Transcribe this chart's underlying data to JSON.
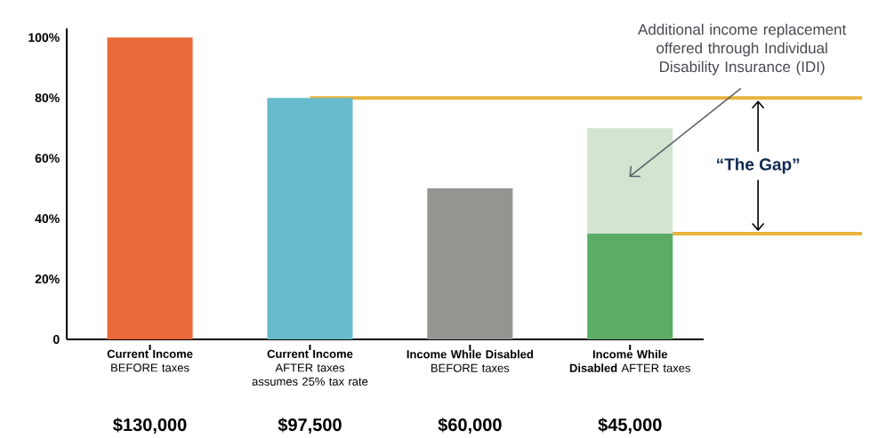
{
  "chart_data": {
    "type": "bar",
    "stacked": true,
    "categories": [
      "**Current Income** BEFORE taxes",
      "**Current Income** AFTER taxes assumes 25% tax rate",
      "**Income While Disabled** BEFORE taxes",
      "**Income While Disabled** AFTER taxes"
    ],
    "series": [
      {
        "colors": [
          "#e8693a",
          "#67bbcc",
          "#969592",
          "#5cac66"
        ],
        "values": [
          100,
          80,
          50,
          35
        ]
      },
      {
        "color": "#d3e4d1",
        "values": [
          null,
          null,
          null,
          35
        ]
      }
    ],
    "ylim": [
      0,
      103
    ],
    "yticks": [
      0,
      {
        "value": 20,
        "label": "20%"
      },
      {
        "value": 40,
        "label": "40%"
      },
      {
        "value": 60,
        "label": "60%"
      },
      {
        "value": 80,
        "label": "80%"
      },
      {
        "value": 100,
        "label": "100%"
      }
    ],
    "ref_lines": [
      {
        "axis": "y",
        "value": 80,
        "color": "#e8b43c"
      },
      {
        "axis": "y",
        "value": 35,
        "color": "#e8b43c"
      }
    ],
    "annotations": [
      "Additional income replacement offered through Individual Disability Insurance (IDI)",
      "“The Gap”",
      "$130,000",
      "$97,500",
      "$60,000",
      "$45,000"
    ]
  }
}
